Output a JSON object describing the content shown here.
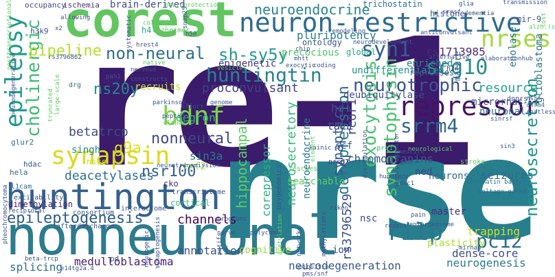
{
  "words": [
    {
      "text": "re-1",
      "color": "#3b1b6b"
    },
    {
      "text": "nrse",
      "color": "#277f8e"
    },
    {
      "text": "nonneuronal",
      "color": "#2d7c8e"
    },
    {
      "text": "corest",
      "color": "#62c561"
    },
    {
      "text": "huntington",
      "color": "#34618d"
    },
    {
      "text": "neuron-restrictive",
      "color": "#2f6b8e"
    },
    {
      "text": "repressor",
      "color": "#471164"
    },
    {
      "text": "synapsin",
      "color": "#ddd91d"
    },
    {
      "text": "bdnf",
      "color": "#7fd34e"
    },
    {
      "text": "epilepsy",
      "color": "#1e9b8a"
    },
    {
      "text": "nrses",
      "color": "#9fda3a"
    },
    {
      "text": "rilp",
      "color": "#2a788e"
    },
    {
      "text": "neurotrophic",
      "color": "#3b528b"
    },
    {
      "text": "syn1",
      "color": "#355f8d"
    },
    {
      "text": "scg10",
      "color": "#2c8d8b"
    },
    {
      "text": "huntingtin",
      "color": "#26838f"
    },
    {
      "text": "pc12",
      "color": "#2a6e8e"
    },
    {
      "text": "srrm4",
      "color": "#31678e"
    },
    {
      "text": "non-neural",
      "color": "#2e6e8e"
    },
    {
      "text": "epileptogenesis",
      "color": "#2d5a8c"
    },
    {
      "text": "cholinergic",
      "color": "#3fbc73"
    },
    {
      "text": "ns20y",
      "color": "#23888e"
    },
    {
      "text": "nsr100",
      "color": "#33628d"
    },
    {
      "text": "nonneural",
      "color": "#3f4889"
    },
    {
      "text": "pipeline",
      "color": "#b5de2b"
    },
    {
      "text": "sh-sy5y",
      "color": "#1f9a8a"
    },
    {
      "text": "neuroendocrine",
      "color": "#25838e"
    },
    {
      "text": "exocytosis",
      "color": "#48c16e"
    },
    {
      "text": "synaptophysin",
      "color": "#4ac16d"
    },
    {
      "text": "neurosecretion",
      "color": "#1f958b"
    },
    {
      "text": "derepression",
      "color": "#2c728e"
    },
    {
      "text": "neuroendocrine",
      "color": "#2a768e"
    },
    {
      "text": "g9a",
      "color": "#d8e219"
    },
    {
      "text": "msin3a",
      "color": "#277f8e"
    },
    {
      "text": "hippocampal",
      "color": "#5ec962"
    },
    {
      "text": "synaptic",
      "color": "#38598c"
    },
    {
      "text": "rs3796529",
      "color": "#3b528b"
    },
    {
      "text": "neurosecretory",
      "color": "#35b779"
    },
    {
      "text": "deacetylases",
      "color": "#2e6f8e"
    },
    {
      "text": "betatrcp",
      "color": "#3e4a89"
    },
    {
      "text": "channels",
      "color": "#440154"
    },
    {
      "text": "resource",
      "color": "#20a386"
    },
    {
      "text": "rcor1",
      "color": "#3f4788"
    },
    {
      "text": "neurogenesis",
      "color": "#2a7b8e"
    },
    {
      "text": "seizures",
      "color": "#31688e"
    },
    {
      "text": "trapping",
      "color": "#cde11d"
    },
    {
      "text": "annotation",
      "color": "#3b528b"
    },
    {
      "text": "neurodegeneration",
      "color": "#38588c"
    },
    {
      "text": "medulloblastoma",
      "color": "#482173"
    },
    {
      "text": "pluripotency",
      "color": "#287c8e"
    },
    {
      "text": "rs1713985",
      "color": "#482878"
    },
    {
      "text": "undifferentiated",
      "color": "#21918c"
    },
    {
      "text": "neuronal",
      "color": "#2c728e"
    },
    {
      "text": "proconvulsant",
      "color": "#424086"
    },
    {
      "text": "epigenetic",
      "color": "#46337e"
    },
    {
      "text": "degron",
      "color": "#32b67a"
    },
    {
      "text": "sin3a",
      "color": "#2a788e"
    },
    {
      "text": "corepressor",
      "color": "#29af7f"
    },
    {
      "text": "chromogranins",
      "color": "#3b528b"
    },
    {
      "text": "enriched",
      "color": "#25848e"
    },
    {
      "text": "precocious",
      "color": "#4ec36b"
    },
    {
      "text": "dense-core",
      "color": "#3e4c8a"
    },
    {
      "text": "plasticity",
      "color": "#addc30"
    },
    {
      "text": "cognitive",
      "color": "#9bd93c"
    },
    {
      "text": "splicing",
      "color": "#2e6f8e"
    },
    {
      "text": "master",
      "color": "#472d7b"
    },
    {
      "text": "deubiquitylase",
      "color": "#3e4989"
    },
    {
      "text": "represses",
      "color": "#3a548c"
    },
    {
      "text": "enolase",
      "color": "#2a768e"
    },
    {
      "text": "micrornas",
      "color": "#3b528b"
    },
    {
      "text": "mature",
      "color": "#33638d"
    },
    {
      "text": "glioblastoma",
      "color": "#2d708e"
    },
    {
      "text": "ontology",
      "color": "#39568c"
    },
    {
      "text": "global",
      "color": "#21a585"
    },
    {
      "text": "recruits",
      "color": "#c2df23"
    },
    {
      "text": "neurons",
      "color": "#31688e"
    },
    {
      "text": "hd",
      "color": "#3b528b"
    },
    {
      "text": "tac1",
      "color": "#3e4a89"
    },
    {
      "text": "scf",
      "color": "#33638d"
    },
    {
      "text": "nsc",
      "color": "#3e4989"
    },
    {
      "text": "ion",
      "color": "#3b518b"
    },
    {
      "text": "trf2",
      "color": "#9fda3a"
    },
    {
      "text": "singh",
      "color": "#238a8d"
    },
    {
      "text": "nscs",
      "color": "#c8e020"
    },
    {
      "text": "occupancy",
      "color": "#3f4889"
    },
    {
      "text": "ischemia",
      "color": "#472f7d"
    },
    {
      "text": "brain-derived",
      "color": "#3e4989"
    },
    {
      "text": "h4",
      "color": "#22a884"
    },
    {
      "text": "trichostatin",
      "color": "#2c738e"
    },
    {
      "text": "histone",
      "color": "#3b528b"
    },
    {
      "text": "mir-9",
      "color": "#3a548c"
    },
    {
      "text": "h3k9",
      "color": "#3d4e8a"
    },
    {
      "text": "h24",
      "color": "#3b528b"
    },
    {
      "text": "cko",
      "color": "#472c7a"
    },
    {
      "text": "l1cam",
      "color": "#2e6e8e"
    },
    {
      "text": "dimethylation",
      "color": "#481d6f"
    },
    {
      "text": "cortical",
      "color": "#3dbc74"
    },
    {
      "text": "glur2",
      "color": "#2c728e"
    },
    {
      "text": "hela",
      "color": "#306a8e"
    },
    {
      "text": "hdac",
      "color": "#3a548c"
    },
    {
      "text": "pd",
      "color": "#3a538b"
    },
    {
      "text": "rpcs",
      "color": "#482878"
    },
    {
      "text": "drg",
      "color": "#31688e"
    },
    {
      "text": "alternative",
      "color": "#3b528b"
    },
    {
      "text": "dnnrsf",
      "color": "#3b528b"
    },
    {
      "text": "neurological",
      "color": "#5ec962"
    },
    {
      "text": "restless",
      "color": "#3b528b"
    },
    {
      "text": "chrm4",
      "color": "#31688e"
    },
    {
      "text": "nsrf",
      "color": "#3b528b"
    },
    {
      "text": "elaborationhub",
      "color": "#3b528b"
    },
    {
      "text": "nrse2",
      "color": "#46337e"
    },
    {
      "text": "prc1",
      "color": "#35b779"
    },
    {
      "text": "stroke",
      "color": "#5ec962"
    },
    {
      "text": "gbm",
      "color": "#3b528b"
    },
    {
      "text": "ned",
      "color": "#414487"
    },
    {
      "text": "chromatin battery",
      "color": "#2c728e"
    },
    {
      "text": "voltage-gated",
      "color": "#31688e"
    },
    {
      "text": "neurite",
      "color": "#3b528b"
    },
    {
      "text": "enlargeosome",
      "color": "#3b528b"
    },
    {
      "text": "rodent",
      "color": "#3b528b"
    },
    {
      "text": "pain",
      "color": "#3b528b"
    },
    {
      "text": "hdac1",
      "color": "#3b528b"
    },
    {
      "text": "programs",
      "color": "#3b528b"
    },
    {
      "text": "afterdischarge",
      "color": "#3b528b"
    },
    {
      "text": "consortium",
      "color": "#3b528b"
    },
    {
      "text": "excitability",
      "color": "#3b528b"
    },
    {
      "text": "interactome",
      "color": "#3b528b"
    },
    {
      "text": "rescues",
      "color": "#5ec962"
    },
    {
      "text": "searchable",
      "color": "#5ec962"
    },
    {
      "text": "transcriptome",
      "color": "#3b528b"
    },
    {
      "text": "baygenomics",
      "color": "#3b528b"
    },
    {
      "text": "pheochromocytoma",
      "color": "#3b528b"
    },
    {
      "text": "neurogenic",
      "color": "#3b528b"
    },
    {
      "text": "riken",
      "color": "#3b528b"
    },
    {
      "text": "nerve",
      "color": "#3b528b"
    },
    {
      "text": "polycomb",
      "color": "#3b528b"
    },
    {
      "text": "acetylation",
      "color": "#5ec962"
    },
    {
      "text": "networks",
      "color": "#3b528b"
    },
    {
      "text": "motifs",
      "color": "#3b528b"
    },
    {
      "text": "methylations",
      "color": "#3b528b"
    },
    {
      "text": "mirnas",
      "color": "#3b528b"
    },
    {
      "text": "lost",
      "color": "#5ec962"
    },
    {
      "text": "dementia",
      "color": "#3b528b"
    },
    {
      "text": "transmission",
      "color": "#3b528b"
    },
    {
      "text": "glia",
      "color": "#3b528b"
    },
    {
      "text": "srnsf",
      "color": "#3b528b"
    },
    {
      "text": "allowing",
      "color": "#3b528b"
    },
    {
      "text": "x2",
      "color": "#3b528b"
    },
    {
      "text": "alzheimer",
      "color": "#5ec962"
    },
    {
      "text": "snap25",
      "color": "#3b528b"
    },
    {
      "text": "n50",
      "color": "#3b528b"
    },
    {
      "text": "neuroprotection",
      "color": "#5ec962"
    },
    {
      "text": "remodeling",
      "color": "#3b528b"
    },
    {
      "text": "neurodevelopment",
      "color": "#3b528b"
    },
    {
      "text": "anticonvulsant",
      "color": "#3b528b"
    },
    {
      "text": "chip",
      "color": "#3b528b"
    },
    {
      "text": "hrest4",
      "color": "#3b528b"
    },
    {
      "text": "native",
      "color": "#5ec962"
    },
    {
      "text": "nervous",
      "color": "#3b528b"
    },
    {
      "text": "constructs",
      "color": "#3b528b"
    },
    {
      "text": "pah1",
      "color": "#3b528b"
    },
    {
      "text": "vesicles",
      "color": "#5ec962"
    },
    {
      "text": "mhtt",
      "color": "#3b528b"
    },
    {
      "text": "exocytic",
      "color": "#3b528b"
    },
    {
      "text": "coding",
      "color": "#3b528b"
    },
    {
      "text": "parkinson",
      "color": "#3b528b"
    },
    {
      "text": "effort",
      "color": "#3b528b"
    },
    {
      "text": "genome",
      "color": "#3b528b"
    },
    {
      "text": "peptide",
      "color": "#3b528b"
    },
    {
      "text": "clones",
      "color": "#5ec962"
    },
    {
      "text": "kainic",
      "color": "#3b528b"
    },
    {
      "text": "element",
      "color": "#5ec962"
    },
    {
      "text": "sinrsf",
      "color": "#3b528b"
    },
    {
      "text": "sin3",
      "color": "#3b528b"
    },
    {
      "text": "neurotransmission",
      "color": "#3b528b"
    },
    {
      "text": "stem/progenitor",
      "color": "#3b528b"
    },
    {
      "text": "hundreds",
      "color": "#3b528b"
    },
    {
      "text": "dysregulation",
      "color": "#3b528b"
    },
    {
      "text": "ubiquitin",
      "color": "#3b528b"
    },
    {
      "text": "synaptogenesis",
      "color": "#3b528b"
    },
    {
      "text": "pms/snf",
      "color": "#3b528b"
    },
    {
      "text": "e14tg2a.4",
      "color": "#3b528b"
    },
    {
      "text": "beta-trcp",
      "color": "#3b528b"
    },
    {
      "text": "reciprocal",
      "color": "#3b528b"
    },
    {
      "text": "neurodegenerative",
      "color": "#3b528b"
    },
    {
      "text": "truncated",
      "color": "#5ec962"
    },
    {
      "text": "large-scale",
      "color": "#5ec962"
    },
    {
      "text": "rs3796862",
      "color": "#3b528b"
    },
    {
      "text": "posttranscriptional",
      "color": "#5ec962"
    },
    {
      "text": "collated",
      "color": "#5ec962"
    },
    {
      "text": "systematic",
      "color": "#3b528b"
    },
    {
      "text": "alzh.(s)",
      "color": "#5ec962"
    }
  ]
}
